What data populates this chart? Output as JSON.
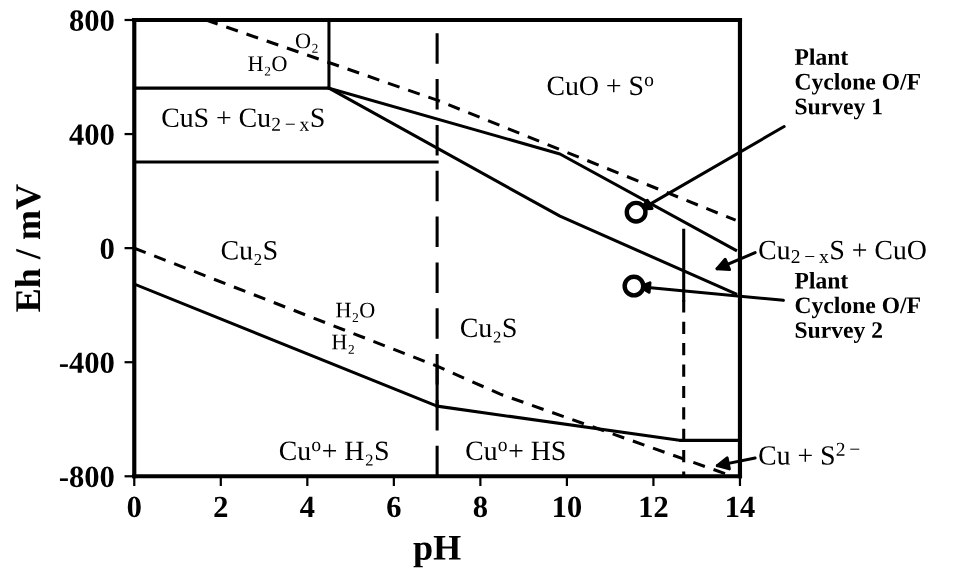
{
  "chart_data": {
    "type": "line",
    "xlabel": "pH",
    "ylabel": "Eh / mV",
    "xlim": [
      0,
      14
    ],
    "ylim": [
      -800,
      800
    ],
    "xticks": [
      0,
      2,
      4,
      6,
      8,
      10,
      12,
      14
    ],
    "yticks": [
      -800,
      -400,
      0,
      400,
      800
    ],
    "grid": false,
    "series": [
      {
        "color": "#000000",
        "line_style": "dashed",
        "x": [
          1.66,
          7,
          13.9
        ],
        "values": [
          800,
          519,
          98
        ]
      },
      {
        "color": "#000000",
        "line_style": "solid",
        "x": [
          0,
          4.5,
          4.5
        ],
        "values": [
          561,
          561,
          800
        ]
      },
      {
        "color": "#000000",
        "line_style": "solid",
        "x": [
          0,
          7
        ],
        "values": [
          302,
          302
        ]
      },
      {
        "color": "#000000",
        "line_style": "solid",
        "x": [
          4.5,
          9.84,
          13.9
        ],
        "values": [
          561,
          330,
          -7
        ]
      },
      {
        "color": "#000000",
        "line_style": "solid",
        "x": [
          4.5,
          9.84,
          13.9
        ],
        "values": [
          561,
          112,
          -160
        ]
      },
      {
        "color": "#000000",
        "line_style": "solid",
        "x": [
          12.7,
          12.7
        ],
        "values": [
          63,
          -183
        ]
      },
      {
        "color": "#000000",
        "line_style": "dashed",
        "x": [
          12.7,
          12.7
        ],
        "values": [
          -183,
          -800
        ]
      },
      {
        "color": "#000000",
        "line_style": "solid",
        "x": [
          0,
          7,
          12.6,
          14
        ],
        "values": [
          -126,
          -554,
          -674,
          -674
        ]
      },
      {
        "color": "#000000",
        "line_style": "solid",
        "x": [
          7,
          7
        ],
        "values": [
          -554,
          -414
        ]
      },
      {
        "color": "#000000",
        "line_style": "dashed",
        "x": [
          0,
          7,
          8.46,
          13.7
        ],
        "values": [
          0,
          -414,
          -512,
          -793
        ]
      },
      {
        "type": "scatter",
        "color": "#000000",
        "marker": "circle",
        "x": [
          11.6,
          11.55
        ],
        "values": [
          126,
          -133
        ]
      }
    ],
    "ref_lines": [
      {
        "axis": "x",
        "value": 7,
        "color": "#000000",
        "line_style": "dashed"
      }
    ],
    "annotations": [
      {
        "text": "Plant\nCyclone O/F\nSurvey 1",
        "x": 11.6,
        "y": 126
      },
      {
        "text": "Plant\nCyclone O/F\nSurvey 2",
        "x": 11.55,
        "y": -133
      },
      "Cu$_{2−x}$S + CuO",
      "Cu + S$^{2−}$",
      "CuO + S$^{o}$",
      "CuS + Cu$_{2−x}$S",
      "O₂",
      "H₂O",
      "Cu₂S",
      "Cu₂S",
      "H₂O",
      "H₂",
      "Cu$^{o}$+ H₂S",
      "Cu$^{o}$+ HS"
    ]
  }
}
